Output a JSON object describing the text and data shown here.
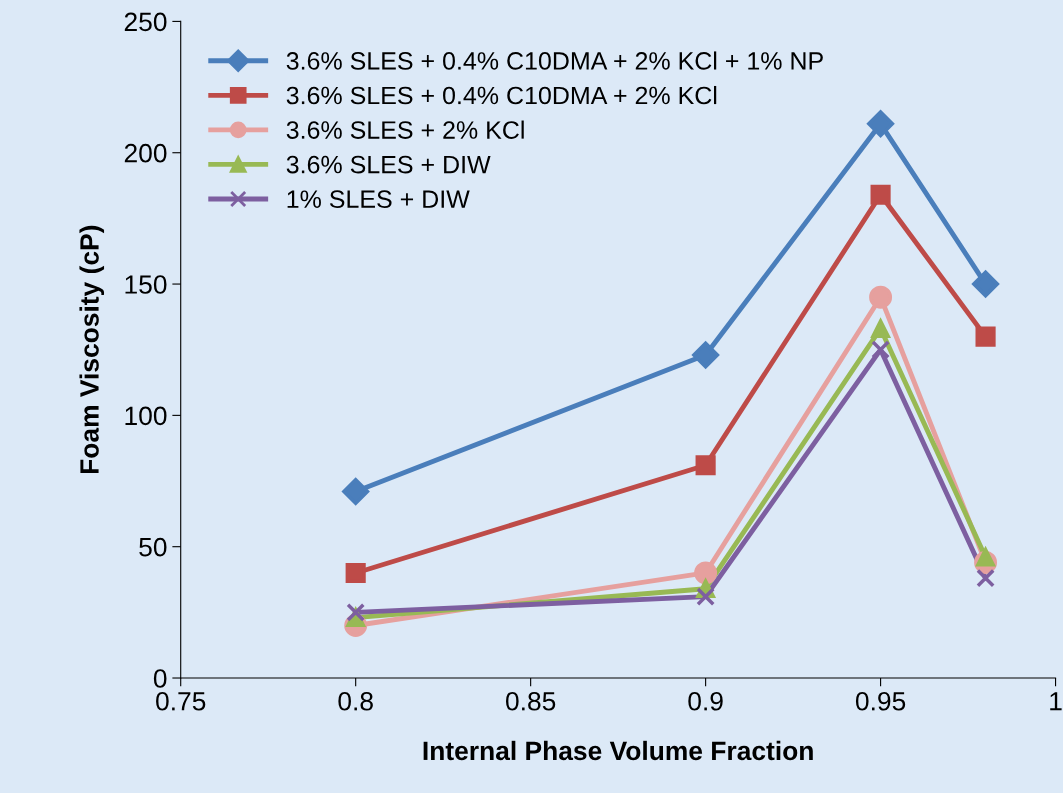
{
  "chart_data": {
    "type": "line",
    "xlabel": "Internal Phase Volume Fraction",
    "ylabel": "Foam Viscosity (cP)",
    "x": [
      0.8,
      0.9,
      0.95,
      0.98
    ],
    "series": [
      {
        "name": "3.6% SLES + 0.4% C10DMA + 2% KCl + 1% NP",
        "color": "#4a7ebb",
        "marker": "diamond",
        "values": [
          71,
          123,
          211,
          150
        ]
      },
      {
        "name": "3.6% SLES + 0.4% C10DMA + 2% KCl",
        "color": "#be4b48",
        "marker": "square",
        "values": [
          40,
          81,
          184,
          130
        ]
      },
      {
        "name": "3.6% SLES + 2% KCl",
        "color": "#e6a09e",
        "marker": "circle",
        "values": [
          20,
          40,
          145,
          44
        ]
      },
      {
        "name": "3.6% SLES + DIW",
        "color": "#98b954",
        "marker": "triangle",
        "values": [
          23,
          34,
          133,
          46
        ]
      },
      {
        "name": "1% SLES + DIW",
        "color": "#7d5fa0",
        "marker": "cross",
        "values": [
          25,
          31,
          125,
          38
        ]
      }
    ],
    "xlim": [
      0.75,
      1
    ],
    "xticks": [
      {
        "value": 0.75,
        "label": "0.75"
      },
      {
        "value": 0.8,
        "label": "0.8"
      },
      {
        "value": 0.85,
        "label": "0.85"
      },
      {
        "value": 0.9,
        "label": "0.9"
      },
      {
        "value": 0.95,
        "label": "0.95"
      },
      {
        "value": 1,
        "label": "1"
      }
    ],
    "ylim": [
      0,
      250
    ],
    "yticks": [
      0,
      50,
      100,
      150,
      200,
      250
    ],
    "grid": false,
    "legend": "top left",
    "line_style": "solid"
  }
}
